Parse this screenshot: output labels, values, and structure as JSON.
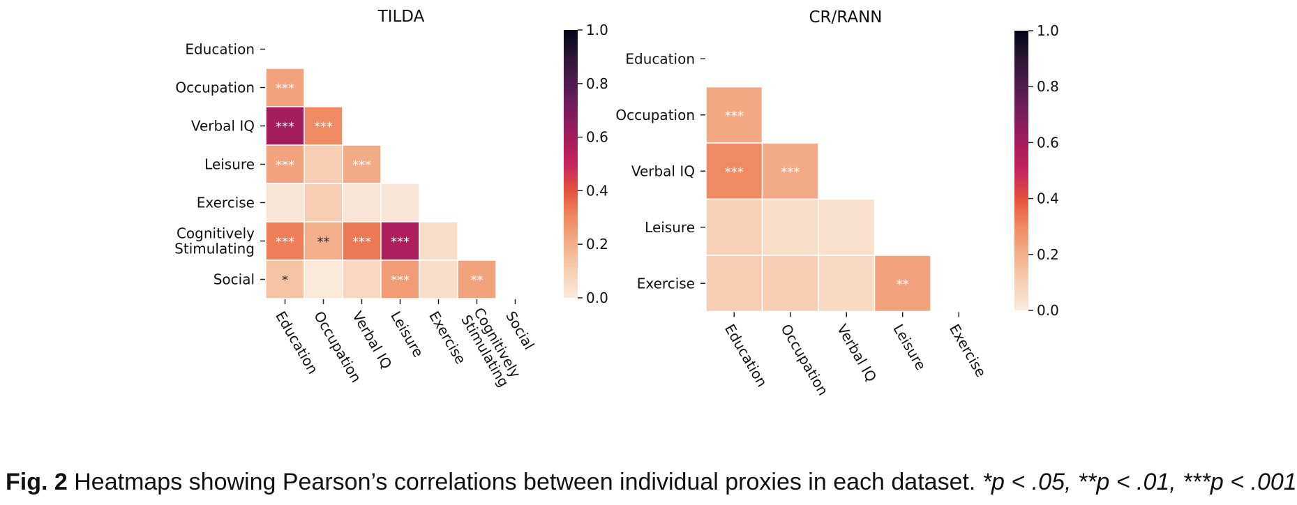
{
  "chart_data": [
    {
      "type": "heatmap",
      "title": "TILDA",
      "rows": [
        "Education",
        "Occupation",
        "Verbal IQ",
        "Leisure",
        "Exercise",
        "Cognitively\nStimulating",
        "Social"
      ],
      "cols": [
        "Education",
        "Occupation",
        "Verbal IQ",
        "Leisure",
        "Exercise",
        "Cognitively\nStimulating",
        "Social"
      ],
      "cells": [
        {
          "row": 1,
          "col": 0,
          "value": 0.23,
          "label": "***"
        },
        {
          "row": 2,
          "col": 0,
          "value": 0.6,
          "label": "***"
        },
        {
          "row": 2,
          "col": 1,
          "value": 0.3,
          "label": "***"
        },
        {
          "row": 3,
          "col": 0,
          "value": 0.23,
          "label": "***"
        },
        {
          "row": 3,
          "col": 1,
          "value": 0.1,
          "label": ""
        },
        {
          "row": 3,
          "col": 2,
          "value": 0.21,
          "label": "***"
        },
        {
          "row": 4,
          "col": 0,
          "value": 0.02,
          "label": ""
        },
        {
          "row": 4,
          "col": 1,
          "value": 0.1,
          "label": ""
        },
        {
          "row": 4,
          "col": 2,
          "value": 0.02,
          "label": ""
        },
        {
          "row": 4,
          "col": 3,
          "value": 0.02,
          "label": ""
        },
        {
          "row": 5,
          "col": 0,
          "value": 0.32,
          "label": "***"
        },
        {
          "row": 5,
          "col": 1,
          "value": 0.2,
          "label": "**"
        },
        {
          "row": 5,
          "col": 2,
          "value": 0.33,
          "label": "***"
        },
        {
          "row": 5,
          "col": 3,
          "value": 0.57,
          "label": "***"
        },
        {
          "row": 5,
          "col": 4,
          "value": 0.05,
          "label": ""
        },
        {
          "row": 6,
          "col": 0,
          "value": 0.14,
          "label": "*"
        },
        {
          "row": 6,
          "col": 1,
          "value": 0.01,
          "label": ""
        },
        {
          "row": 6,
          "col": 2,
          "value": 0.07,
          "label": ""
        },
        {
          "row": 6,
          "col": 3,
          "value": 0.25,
          "label": "***"
        },
        {
          "row": 6,
          "col": 4,
          "value": 0.05,
          "label": ""
        },
        {
          "row": 6,
          "col": 5,
          "value": 0.23,
          "label": "**"
        }
      ],
      "colorbar": {
        "min": 0.0,
        "max": 1.0,
        "ticks": [
          "0.0",
          "0.2",
          "0.4",
          "0.6",
          "0.8",
          "1.0"
        ]
      }
    },
    {
      "type": "heatmap",
      "title": "CR/RANN",
      "rows": [
        "Education",
        "Occupation",
        "Verbal IQ",
        "Leisure",
        "Exercise"
      ],
      "cols": [
        "Education",
        "Occupation",
        "Verbal IQ",
        "Leisure",
        "Exercise"
      ],
      "cells": [
        {
          "row": 1,
          "col": 0,
          "value": 0.22,
          "label": "***"
        },
        {
          "row": 2,
          "col": 0,
          "value": 0.3,
          "label": "***"
        },
        {
          "row": 2,
          "col": 1,
          "value": 0.21,
          "label": "***"
        },
        {
          "row": 3,
          "col": 0,
          "value": 0.09,
          "label": ""
        },
        {
          "row": 3,
          "col": 1,
          "value": 0.05,
          "label": ""
        },
        {
          "row": 3,
          "col": 2,
          "value": 0.04,
          "label": ""
        },
        {
          "row": 4,
          "col": 0,
          "value": 0.1,
          "label": ""
        },
        {
          "row": 4,
          "col": 1,
          "value": 0.1,
          "label": ""
        },
        {
          "row": 4,
          "col": 2,
          "value": 0.06,
          "label": ""
        },
        {
          "row": 4,
          "col": 3,
          "value": 0.23,
          "label": "**"
        }
      ],
      "colorbar": {
        "min": 0.0,
        "max": 1.0,
        "ticks": [
          "0.0",
          "0.2",
          "0.4",
          "0.6",
          "0.8",
          "1.0"
        ]
      }
    }
  ],
  "caption": {
    "fig_label": "Fig. 2",
    "text": "Heatmaps showing Pearson’s correlations between individual proxies in each dataset.",
    "note": "*p < .05, **p < .01, ***p < .001"
  }
}
